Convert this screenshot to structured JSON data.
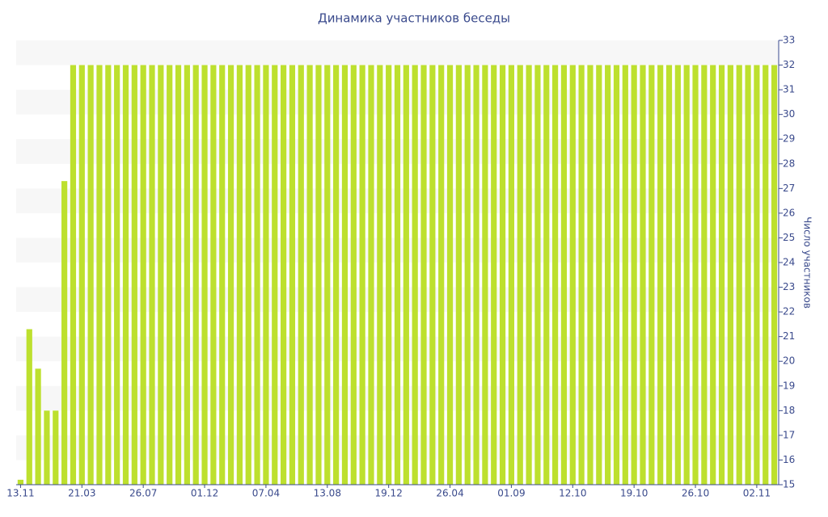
{
  "chart_data": {
    "type": "bar",
    "title": "Динамика участников беседы",
    "y_axis_label": "Число участников",
    "categories": [
      "13.11",
      null,
      null,
      null,
      null,
      null,
      null,
      "21.03",
      null,
      null,
      null,
      null,
      null,
      null,
      "26.07",
      null,
      null,
      null,
      null,
      null,
      null,
      "01.12",
      null,
      null,
      null,
      null,
      null,
      null,
      "07.04",
      null,
      null,
      null,
      null,
      null,
      null,
      "13.08",
      null,
      null,
      null,
      null,
      null,
      null,
      "19.12",
      null,
      null,
      null,
      null,
      null,
      null,
      "26.04",
      null,
      null,
      null,
      null,
      null,
      null,
      "01.09",
      null,
      null,
      null,
      null,
      null,
      null,
      "12.10",
      null,
      null,
      null,
      null,
      null,
      null,
      "19.10",
      null,
      null,
      null,
      null,
      null,
      null,
      "26.10",
      null,
      null,
      null,
      null,
      null,
      null,
      "02.11",
      null,
      null
    ],
    "values": [
      15.2,
      21.3,
      19.7,
      18,
      18,
      27.3,
      32,
      32,
      32,
      32,
      32,
      32,
      32,
      32,
      32,
      32,
      32,
      32,
      32,
      32,
      32,
      32,
      32,
      32,
      32,
      32,
      32,
      32,
      32,
      32,
      32,
      32,
      32,
      32,
      32,
      32,
      32,
      32,
      32,
      32,
      32,
      32,
      32,
      32,
      32,
      32,
      32,
      32,
      32,
      32,
      32,
      32,
      32,
      32,
      32,
      32,
      32,
      32,
      32,
      32,
      32,
      32,
      32,
      32,
      32,
      32,
      32,
      32,
      32,
      32,
      32,
      32,
      32,
      32,
      32,
      32,
      32,
      32,
      32,
      32,
      32,
      32,
      32,
      32,
      32,
      32,
      32
    ],
    "color": "#bde02e",
    "ylim": [
      15,
      33
    ],
    "yticks": [
      15,
      16,
      17,
      18,
      19,
      20,
      21,
      22,
      23,
      24,
      25,
      26,
      27,
      28,
      29,
      30,
      31,
      32,
      33
    ],
    "grid": true
  }
}
